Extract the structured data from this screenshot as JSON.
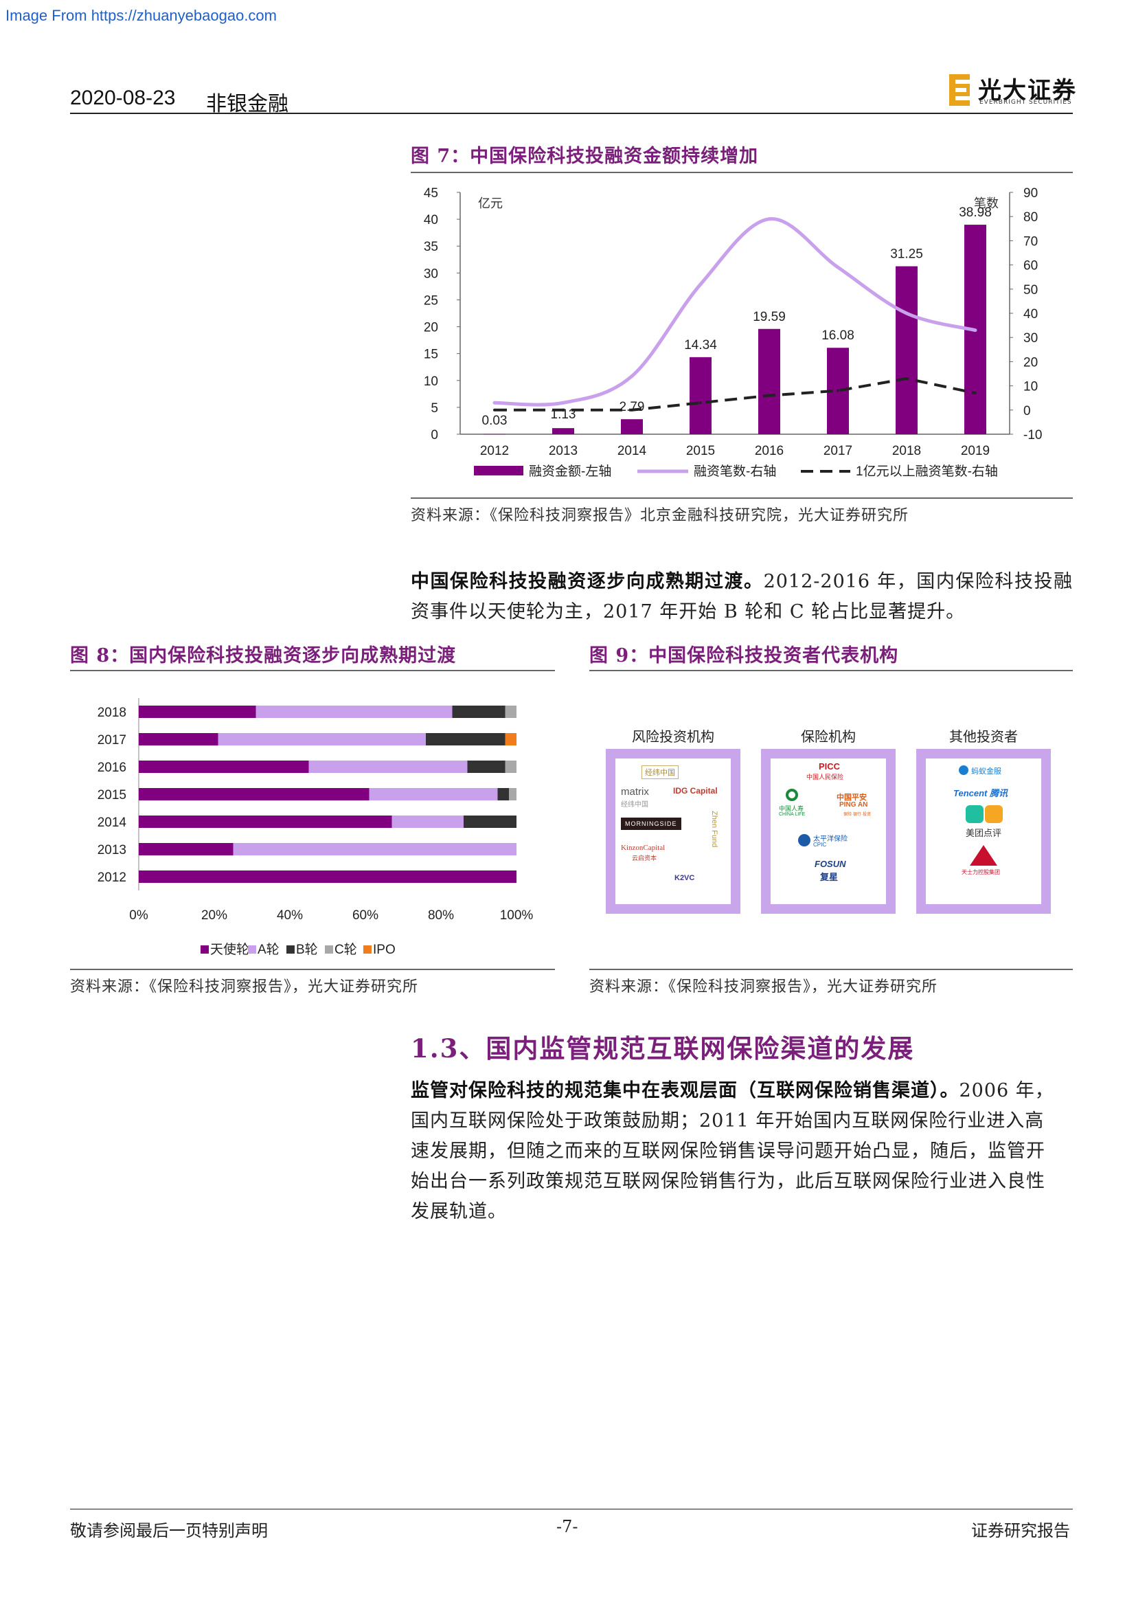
{
  "watermark": "Image From https://zhuanyebaogao.com",
  "header": {
    "date": "2020-08-23",
    "sector": "非银金融",
    "brand_cn": "光大证券",
    "brand_en": "EVERBRIGHT SECURITIES"
  },
  "fig7": {
    "title": "图 7：中国保险科技投融资金额持续增加",
    "source": "资料来源：《保险科技洞察报告》北京金融科技研究院，光大证券研究所"
  },
  "para1": {
    "bold": "中国保险科技投融资逐步向成熟期过渡。",
    "rest": "2012-2016 年，国内保险科技投融资事件以天使轮为主，2017 年开始 B 轮和 C 轮占比显著提升。"
  },
  "fig8": {
    "title": "图 8：国内保险科技投融资逐步向成熟期过渡",
    "source": "资料来源：《保险科技洞察报告》，光大证券研究所"
  },
  "fig9": {
    "title": "图 9：中国保险科技投资者代表机构",
    "source": "资料来源：《保险科技洞察报告》，光大证券研究所",
    "categories": [
      "风险投资机构",
      "保险机构",
      "其他投资者"
    ],
    "vc_logos": [
      "经纬中国",
      "matrix",
      "经纬中国",
      "IDG Capital",
      "MORNINGSIDE",
      "Zhen Fund",
      "KinzonCapital",
      "云启资本",
      "K2VC"
    ],
    "ins_logos": [
      "PICC",
      "中国人民保险",
      "中国人寿",
      "CHINA LIFE",
      "中国平安",
      "PING AN",
      "保险·银行·投资",
      "太平洋保险",
      "CPIC",
      "FOSUN",
      "复星"
    ],
    "other_logos": [
      "蚂蚁金服",
      "Tencent 腾讯",
      "美团点评",
      "天士力控股集团"
    ]
  },
  "section": {
    "title": "1.3、国内监管规范互联网保险渠道的发展"
  },
  "para2": {
    "bold": "监管对保险科技的规范集中在表观层面（互联网保险销售渠道）。",
    "lines": [
      "2006 年，",
      "国内互联网保险处于政策鼓励期；2011 年开始国内互联网保险行业进入高",
      "速发展期，但随之而来的互联网保险销售误导问题开始凸显，随后，监管开",
      "始出台一系列政策规范互联网保险销售行为，此后互联网保险行业进入良性",
      "发展轨道。"
    ]
  },
  "footer": {
    "left": "敬请参阅最后一页特别声明",
    "center": "-7-",
    "right": "证券研究报告"
  },
  "chart_data": [
    {
      "type": "bar",
      "categories": [
        "2012",
        "2013",
        "2014",
        "2015",
        "2016",
        "2017",
        "2018",
        "2019"
      ],
      "left_unit": "亿元",
      "right_unit": "笔数",
      "ylim_left": [
        0,
        45
      ],
      "ylim_right": [
        -10,
        90
      ],
      "left_ticks": [
        0,
        5,
        10,
        15,
        20,
        25,
        30,
        35,
        40,
        45
      ],
      "right_ticks": [
        -10,
        0,
        10,
        20,
        30,
        40,
        50,
        60,
        70,
        80,
        90
      ],
      "series": [
        {
          "name": "融资金额-左轴",
          "axis": "left",
          "kind": "bar",
          "color": "#800080",
          "values": [
            0.03,
            1.13,
            2.79,
            14.34,
            19.59,
            16.08,
            31.25,
            38.98
          ],
          "labels": [
            "0.03",
            "1.13",
            "2.79",
            "14.34",
            "19.59",
            "16.08",
            "31.25",
            "38.98"
          ]
        },
        {
          "name": "融资笔数-右轴",
          "axis": "right",
          "kind": "line",
          "color": "#c9a0ec",
          "values": [
            3,
            3,
            14,
            52,
            79,
            59,
            40,
            33
          ]
        },
        {
          "name": "1亿元以上融资笔数-右轴",
          "axis": "right",
          "kind": "dashed",
          "color": "#222222",
          "values": [
            0,
            0,
            0,
            3,
            6,
            8,
            13,
            7
          ]
        }
      ]
    },
    {
      "type": "bar",
      "orientation": "horizontal-stacked-percent",
      "categories": [
        "2018",
        "2017",
        "2016",
        "2015",
        "2014",
        "2013",
        "2012"
      ],
      "xticks": [
        "0%",
        "20%",
        "40%",
        "60%",
        "80%",
        "100%"
      ],
      "series": [
        {
          "name": "天使轮",
          "color": "#800080",
          "values": [
            31,
            21,
            45,
            61,
            67,
            25,
            100
          ]
        },
        {
          "name": "A轮",
          "color": "#c9a0ec",
          "values": [
            52,
            55,
            42,
            34,
            19,
            75,
            0
          ]
        },
        {
          "name": "B轮",
          "color": "#333333",
          "values": [
            14,
            21,
            10,
            3,
            14,
            0,
            0
          ]
        },
        {
          "name": "C轮",
          "color": "#a8a8a8",
          "values": [
            3,
            0,
            3,
            2,
            0,
            0,
            0
          ]
        },
        {
          "name": "IPO",
          "color": "#f07c1c",
          "values": [
            0,
            3,
            0,
            0,
            0,
            0,
            0
          ]
        }
      ]
    }
  ]
}
